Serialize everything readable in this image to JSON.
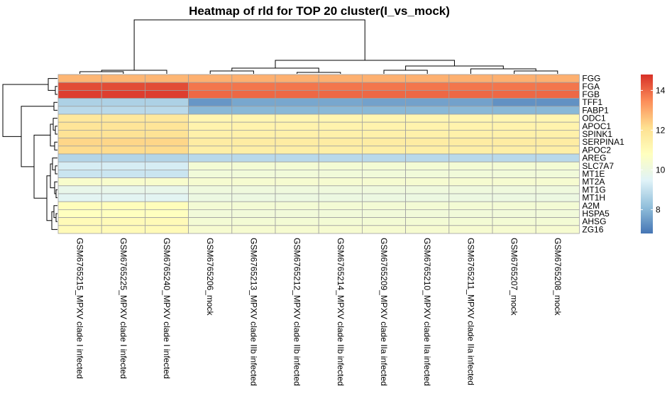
{
  "chart_data": {
    "type": "heatmap",
    "title": "Heatmap of rld for TOP 20 cluster(I_vs_mock)",
    "rows": [
      "FGG",
      "FGA",
      "FGB",
      "TFF1",
      "FABP1",
      "ODC1",
      "APOC1",
      "SPINK1",
      "SERPINA1",
      "APOC2",
      "AREG",
      "SLC7A7",
      "MT1E",
      "MT2A",
      "MT1G",
      "MT1H",
      "A2M",
      "HSPA5",
      "AHSG",
      "ZG16"
    ],
    "columns": [
      "GSM6765215_MPXV clade I infected",
      "GSM6765225_MPXV clade I infected",
      "GSM6765240_MPXV clade I infected",
      "GSM6765206_mock",
      "GSM6765213_MPXV clade IIb infected",
      "GSM6765212_MPXV clade IIb infected",
      "GSM6765214_MPXV clade IIb infected",
      "GSM6765209_MPXV clade IIa infected",
      "GSM6765210_MPXV clade IIa infected",
      "GSM6765211_MPXV clade IIa infected",
      "GSM6765207_mock",
      "GSM6765208_mock"
    ],
    "values": [
      [
        12.8,
        12.8,
        12.8,
        12.9,
        12.9,
        12.9,
        12.9,
        12.9,
        12.9,
        12.9,
        12.9,
        12.9
      ],
      [
        14.4,
        14.4,
        14.4,
        13.8,
        13.8,
        13.8,
        13.8,
        13.8,
        13.8,
        13.8,
        13.8,
        13.8
      ],
      [
        14.6,
        14.6,
        14.6,
        14.0,
        14.0,
        14.0,
        14.0,
        14.0,
        14.0,
        14.0,
        14.0,
        14.0
      ],
      [
        8.6,
        8.6,
        8.6,
        7.4,
        7.7,
        7.7,
        7.7,
        7.6,
        7.6,
        7.6,
        7.3,
        7.3
      ],
      [
        8.8,
        8.8,
        8.8,
        8.0,
        8.0,
        8.0,
        8.0,
        8.0,
        8.0,
        8.0,
        8.0,
        8.0
      ],
      [
        11.8,
        11.8,
        11.8,
        11.2,
        11.2,
        11.2,
        11.2,
        11.2,
        11.2,
        11.2,
        11.2,
        11.2
      ],
      [
        11.9,
        11.9,
        11.9,
        11.3,
        11.3,
        11.3,
        11.3,
        11.3,
        11.3,
        11.3,
        11.3,
        11.3
      ],
      [
        12.0,
        12.0,
        12.0,
        11.4,
        11.4,
        11.4,
        11.4,
        11.4,
        11.4,
        11.4,
        11.4,
        11.4
      ],
      [
        12.3,
        12.3,
        12.3,
        11.6,
        11.6,
        11.6,
        11.6,
        11.6,
        11.6,
        11.6,
        11.6,
        11.6
      ],
      [
        12.2,
        12.2,
        12.2,
        11.5,
        11.5,
        11.5,
        11.5,
        11.5,
        11.5,
        11.5,
        11.5,
        11.5
      ],
      [
        8.7,
        8.7,
        8.7,
        8.8,
        8.8,
        8.8,
        8.8,
        8.8,
        8.8,
        8.8,
        8.8,
        8.8
      ],
      [
        9.3,
        9.3,
        9.3,
        10.3,
        10.3,
        10.3,
        10.3,
        10.3,
        10.3,
        10.3,
        10.3,
        10.3
      ],
      [
        9.1,
        9.1,
        9.1,
        10.2,
        10.2,
        10.2,
        10.2,
        10.2,
        10.2,
        10.2,
        10.2,
        10.2
      ],
      [
        10.5,
        10.5,
        10.5,
        10.4,
        10.4,
        10.4,
        10.4,
        10.4,
        10.4,
        10.4,
        10.4,
        10.4
      ],
      [
        9.8,
        9.8,
        9.8,
        10.1,
        10.1,
        10.1,
        10.1,
        10.1,
        10.1,
        10.1,
        10.1,
        10.1
      ],
      [
        9.6,
        9.6,
        9.6,
        10.0,
        10.0,
        10.0,
        10.0,
        10.0,
        10.0,
        10.0,
        10.0,
        10.0
      ],
      [
        10.9,
        10.9,
        10.9,
        10.3,
        10.3,
        10.3,
        10.3,
        10.3,
        10.3,
        10.3,
        10.3,
        10.3
      ],
      [
        10.8,
        10.8,
        10.8,
        10.2,
        10.2,
        10.2,
        10.2,
        10.2,
        10.2,
        10.2,
        10.2,
        10.2
      ],
      [
        11.0,
        11.0,
        11.0,
        10.3,
        10.3,
        10.3,
        10.3,
        10.3,
        10.3,
        10.3,
        10.3,
        10.3
      ],
      [
        11.0,
        11.0,
        11.0,
        10.4,
        10.4,
        10.4,
        10.4,
        10.4,
        10.4,
        10.4,
        10.4,
        10.4
      ]
    ],
    "color_scale": {
      "min": 6.8,
      "max": 14.8,
      "colors": [
        "#4575b4",
        "#91bfdb",
        "#e0f3f8",
        "#ffffbf",
        "#fee090",
        "#fc8d59",
        "#d73027"
      ],
      "ticks": [
        8,
        10,
        12,
        14
      ]
    },
    "cell_border_color": "#a0a0a0",
    "row_dendrogram": true,
    "column_dendrogram": true,
    "legend": "right"
  }
}
